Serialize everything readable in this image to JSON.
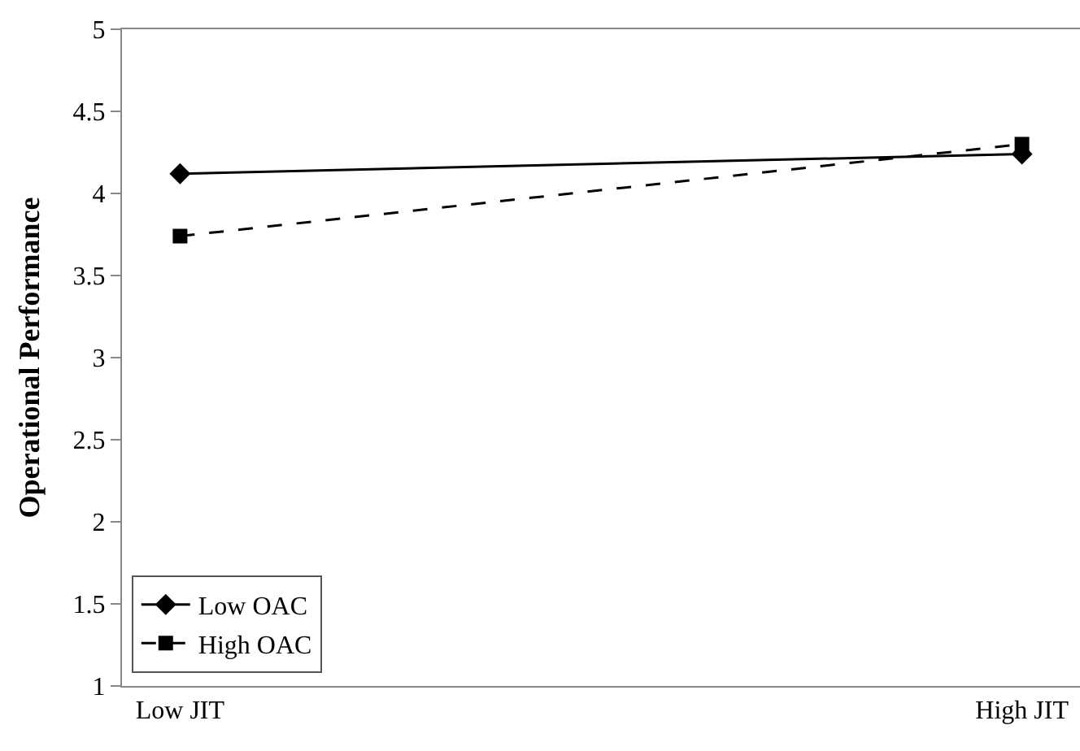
{
  "chart_data": {
    "type": "line",
    "ylabel": "Operational Performance",
    "categories": [
      "Low JIT",
      "High JIT"
    ],
    "series": [
      {
        "name": "Low OAC",
        "color": "#000000",
        "values": [
          4.12,
          4.24
        ],
        "marker": "diamond",
        "line_style": "solid"
      },
      {
        "name": "High OAC",
        "color": "#000000",
        "values": [
          3.74,
          4.3
        ],
        "marker": "square",
        "line_style": "dashed"
      }
    ],
    "ylim": [
      1,
      5
    ],
    "yticks": [
      1,
      1.5,
      2,
      2.5,
      3,
      3.5,
      4,
      4.5,
      5
    ],
    "legend": "bottom left"
  }
}
